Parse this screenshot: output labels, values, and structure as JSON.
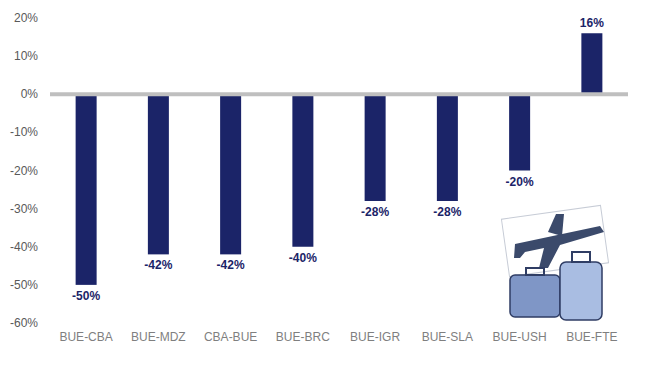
{
  "chart_data": {
    "type": "bar",
    "categories": [
      "BUE-CBA",
      "BUE-MDZ",
      "CBA-BUE",
      "BUE-BRC",
      "BUE-IGR",
      "BUE-SLA",
      "BUE-USH",
      "BUE-FTE"
    ],
    "values": [
      -50,
      -42,
      -42,
      -40,
      -28,
      -28,
      -20,
      16
    ],
    "value_labels": [
      "-50%",
      "-42%",
      "-42%",
      "-40%",
      "-28%",
      "-28%",
      "-20%",
      "16%"
    ],
    "color": "#1b2468",
    "ylim": [
      -60,
      20
    ],
    "yticks": [
      {
        "value": -60,
        "label": "-60%"
      },
      {
        "value": -50,
        "label": "-50%"
      },
      {
        "value": -40,
        "label": "-40%"
      },
      {
        "value": -30,
        "label": "-30%"
      },
      {
        "value": -20,
        "label": "-20%"
      },
      {
        "value": -10,
        "label": "-10%"
      },
      {
        "value": 0,
        "label": "0%"
      },
      {
        "value": 10,
        "label": "10%"
      },
      {
        "value": 20,
        "label": "20%"
      }
    ],
    "grid": false,
    "data_labels": true
  }
}
